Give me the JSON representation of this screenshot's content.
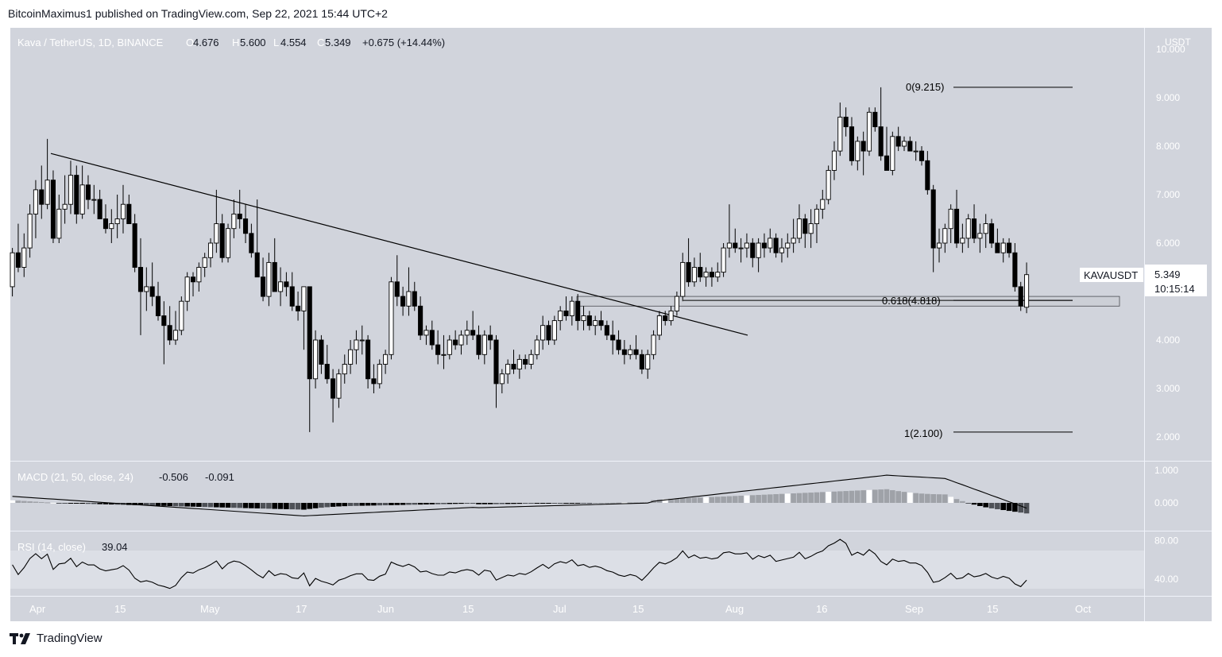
{
  "publisher_line": "BitcoinMaximus1 published on TradingView.com, Sep 22, 2021 15:44 UTC+2",
  "footer_brand": "TradingView",
  "colors": {
    "panel_bg": "#d1d4dc",
    "rsi_band": "#dcdfe6",
    "up_candle_fill": "#ffffff",
    "down_candle_fill": "#000000",
    "line": "#000000",
    "macd_hist_pos_light": "#ffffff",
    "macd_hist_gray": "#8a8d93",
    "macd_hist_dark": "#000000"
  },
  "header": {
    "symbol": "Kava / TetherUS, 1D, BINANCE",
    "o_key": "O",
    "o_val": "4.676",
    "h_key": "H",
    "h_val": "5.600",
    "l_key": "L",
    "l_val": "4.554",
    "c_key": "C",
    "c_val": "5.349",
    "change": "+0.675 (+14.44%)"
  },
  "macd_header": {
    "name": "MACD (21, 50, close, 24)",
    "v1": "-0.506",
    "v2": "-0.091"
  },
  "rsi_header": {
    "name": "RSI (14, close)",
    "v": "39.04"
  },
  "price_axis": {
    "unit": "USDT",
    "ticks": [
      "10.000",
      "9.000",
      "8.000",
      "7.000",
      "6.000",
      "4.000",
      "3.000",
      "2.000"
    ]
  },
  "macd_axis": {
    "ticks": [
      "1.000",
      "0.000"
    ]
  },
  "rsi_axis": {
    "ticks": [
      "80.00",
      "40.00"
    ]
  },
  "time_axis": {
    "ticks": [
      "Apr",
      "15",
      "May",
      "17",
      "Jun",
      "15",
      "Jul",
      "15",
      "Aug",
      "16",
      "Sep",
      "15",
      "Oct"
    ]
  },
  "last_price": {
    "symbol": "KAVAUSDT",
    "price": "5.349",
    "countdown": "10:15:14"
  },
  "fib": {
    "level0": "0(9.215)",
    "level618": "0.618(4.818)",
    "level1": "1(2.100)"
  },
  "chart_data": {
    "type": "candlestick",
    "symbol": "Kava / TetherUS, 1D, BINANCE",
    "unit": "USDT",
    "ylim": [
      1.6,
      10.5
    ],
    "x_start": "2021-03-29",
    "candles": [
      [
        5.1,
        5.9,
        4.9,
        5.8
      ],
      [
        5.8,
        6.4,
        5.4,
        5.5
      ],
      [
        5.5,
        6.2,
        5.3,
        5.9
      ],
      [
        5.9,
        6.8,
        5.7,
        6.6
      ],
      [
        6.6,
        7.3,
        6.1,
        7.1
      ],
      [
        7.1,
        7.6,
        6.5,
        6.8
      ],
      [
        6.8,
        8.15,
        6.7,
        7.3
      ],
      [
        7.3,
        7.5,
        6.0,
        6.1
      ],
      [
        6.1,
        7.0,
        6.0,
        6.7
      ],
      [
        6.7,
        7.4,
        6.4,
        6.8
      ],
      [
        6.8,
        7.7,
        6.6,
        7.4
      ],
      [
        7.4,
        7.6,
        6.4,
        6.6
      ],
      [
        6.6,
        7.6,
        6.5,
        7.2
      ],
      [
        7.2,
        7.4,
        6.7,
        6.9
      ],
      [
        6.9,
        7.2,
        6.6,
        6.9
      ],
      [
        6.9,
        7.1,
        6.5,
        6.5
      ],
      [
        6.5,
        6.8,
        6.2,
        6.3
      ],
      [
        6.3,
        6.7,
        6.0,
        6.4
      ],
      [
        6.4,
        7.0,
        6.1,
        6.5
      ],
      [
        6.5,
        7.2,
        6.2,
        6.8
      ],
      [
        6.8,
        7.0,
        6.4,
        6.4
      ],
      [
        6.4,
        6.6,
        5.4,
        5.5
      ],
      [
        5.5,
        6.1,
        4.1,
        5.0
      ],
      [
        5.0,
        5.5,
        4.6,
        5.1
      ],
      [
        5.1,
        5.6,
        4.7,
        4.9
      ],
      [
        4.9,
        5.2,
        4.4,
        4.5
      ],
      [
        4.5,
        4.8,
        3.5,
        4.3
      ],
      [
        4.3,
        4.7,
        3.9,
        4.0
      ],
      [
        4.0,
        4.6,
        3.9,
        4.2
      ],
      [
        4.2,
        4.9,
        4.1,
        4.8
      ],
      [
        4.8,
        5.4,
        4.6,
        5.3
      ],
      [
        5.3,
        5.4,
        4.9,
        5.2
      ],
      [
        5.2,
        5.6,
        5.0,
        5.5
      ],
      [
        5.5,
        5.8,
        5.3,
        5.7
      ],
      [
        5.7,
        6.1,
        5.5,
        6.0
      ],
      [
        6.0,
        7.1,
        5.8,
        6.4
      ],
      [
        6.4,
        6.6,
        5.6,
        5.7
      ],
      [
        5.7,
        6.4,
        5.6,
        6.3
      ],
      [
        6.3,
        6.9,
        6.1,
        6.6
      ],
      [
        6.6,
        7.1,
        6.3,
        6.5
      ],
      [
        6.5,
        6.8,
        6.0,
        6.2
      ],
      [
        6.2,
        6.4,
        5.7,
        5.8
      ],
      [
        5.8,
        6.9,
        5.3,
        5.3
      ],
      [
        5.3,
        5.7,
        4.8,
        4.9
      ],
      [
        4.9,
        5.8,
        4.7,
        5.6
      ],
      [
        5.6,
        6.1,
        5.0,
        5.0
      ],
      [
        5.0,
        5.5,
        4.7,
        5.2
      ],
      [
        5.2,
        5.4,
        4.9,
        5.1
      ],
      [
        5.1,
        5.4,
        4.6,
        4.7
      ],
      [
        4.7,
        5.0,
        4.4,
        4.6
      ],
      [
        4.6,
        5.1,
        3.8,
        5.1
      ],
      [
        5.1,
        5.1,
        2.1,
        3.2
      ],
      [
        3.2,
        4.2,
        3.0,
        4.0
      ],
      [
        4.0,
        4.1,
        3.3,
        3.5
      ],
      [
        3.5,
        3.9,
        3.1,
        3.2
      ],
      [
        3.2,
        3.4,
        2.3,
        2.8
      ],
      [
        2.8,
        3.4,
        2.6,
        3.3
      ],
      [
        3.3,
        3.7,
        3.1,
        3.5
      ],
      [
        3.5,
        4.0,
        3.3,
        3.8
      ],
      [
        3.8,
        4.2,
        3.5,
        4.0
      ],
      [
        4.0,
        4.3,
        3.7,
        4.0
      ],
      [
        4.0,
        4.1,
        3.0,
        3.2
      ],
      [
        3.2,
        3.5,
        2.9,
        3.1
      ],
      [
        3.1,
        3.6,
        3.0,
        3.5
      ],
      [
        3.5,
        3.8,
        3.3,
        3.7
      ],
      [
        3.7,
        5.3,
        3.6,
        5.2
      ],
      [
        5.2,
        5.75,
        4.7,
        4.9
      ],
      [
        4.9,
        5.1,
        4.5,
        4.7
      ],
      [
        4.7,
        5.5,
        4.5,
        5.0
      ],
      [
        5.0,
        5.2,
        4.6,
        4.7
      ],
      [
        4.7,
        4.9,
        4.0,
        4.1
      ],
      [
        4.1,
        4.3,
        3.9,
        4.2
      ],
      [
        4.2,
        4.4,
        3.8,
        3.9
      ],
      [
        3.9,
        4.2,
        3.5,
        3.7
      ],
      [
        3.7,
        4.1,
        3.4,
        3.7
      ],
      [
        3.7,
        4.1,
        3.6,
        4.0
      ],
      [
        4.0,
        4.2,
        3.8,
        3.9
      ],
      [
        3.9,
        4.2,
        3.7,
        4.1
      ],
      [
        4.1,
        4.4,
        3.9,
        4.2
      ],
      [
        4.2,
        4.6,
        4.0,
        4.1
      ],
      [
        4.1,
        4.3,
        3.6,
        3.7
      ],
      [
        3.7,
        4.2,
        3.5,
        4.1
      ],
      [
        4.1,
        4.3,
        3.8,
        4.0
      ],
      [
        4.0,
        4.1,
        2.6,
        3.1
      ],
      [
        3.1,
        3.4,
        2.9,
        3.3
      ],
      [
        3.3,
        3.6,
        3.1,
        3.5
      ],
      [
        3.5,
        3.8,
        3.3,
        3.4
      ],
      [
        3.4,
        3.7,
        3.2,
        3.6
      ],
      [
        3.6,
        3.7,
        3.4,
        3.5
      ],
      [
        3.5,
        3.8,
        3.4,
        3.7
      ],
      [
        3.7,
        4.1,
        3.6,
        4.0
      ],
      [
        4.0,
        4.5,
        3.8,
        4.3
      ],
      [
        4.3,
        4.4,
        3.9,
        4.0
      ],
      [
        4.0,
        4.5,
        3.9,
        4.4
      ],
      [
        4.4,
        4.7,
        4.2,
        4.6
      ],
      [
        4.6,
        4.9,
        4.4,
        4.5
      ],
      [
        4.5,
        4.9,
        4.3,
        4.8
      ],
      [
        4.8,
        4.95,
        4.2,
        4.4
      ],
      [
        4.4,
        4.7,
        4.2,
        4.5
      ],
      [
        4.5,
        4.6,
        4.2,
        4.3
      ],
      [
        4.3,
        4.5,
        4.1,
        4.4
      ],
      [
        4.4,
        4.6,
        4.2,
        4.3
      ],
      [
        4.3,
        4.4,
        4.0,
        4.1
      ],
      [
        4.1,
        4.4,
        3.7,
        4.0
      ],
      [
        4.0,
        4.2,
        3.7,
        3.8
      ],
      [
        3.8,
        4.0,
        3.5,
        3.7
      ],
      [
        3.7,
        3.9,
        3.6,
        3.8
      ],
      [
        3.8,
        4.1,
        3.6,
        3.7
      ],
      [
        3.7,
        3.8,
        3.3,
        3.4
      ],
      [
        3.4,
        3.8,
        3.2,
        3.7
      ],
      [
        3.7,
        4.2,
        3.6,
        4.1
      ],
      [
        4.1,
        4.6,
        4.0,
        4.5
      ],
      [
        4.5,
        4.6,
        4.3,
        4.4
      ],
      [
        4.4,
        4.7,
        4.3,
        4.6
      ],
      [
        4.6,
        5.0,
        4.5,
        4.9
      ],
      [
        4.9,
        5.8,
        4.8,
        5.6
      ],
      [
        5.6,
        6.1,
        5.1,
        5.2
      ],
      [
        5.2,
        5.7,
        5.1,
        5.5
      ],
      [
        5.5,
        5.8,
        5.2,
        5.3
      ],
      [
        5.3,
        5.5,
        5.1,
        5.4
      ],
      [
        5.4,
        5.5,
        5.1,
        5.3
      ],
      [
        5.3,
        5.6,
        5.2,
        5.4
      ],
      [
        5.4,
        6.0,
        5.3,
        5.9
      ],
      [
        5.9,
        6.8,
        5.7,
        6.0
      ],
      [
        6.0,
        6.3,
        5.8,
        5.9
      ],
      [
        5.9,
        6.1,
        5.6,
        5.9
      ],
      [
        5.9,
        6.2,
        5.7,
        6.0
      ],
      [
        6.0,
        6.1,
        5.5,
        5.7
      ],
      [
        5.7,
        6.1,
        5.4,
        6.0
      ],
      [
        6.0,
        6.2,
        5.7,
        5.9
      ],
      [
        5.9,
        6.3,
        5.8,
        6.1
      ],
      [
        6.1,
        6.2,
        5.7,
        5.8
      ],
      [
        5.8,
        6.1,
        5.6,
        5.9
      ],
      [
        5.9,
        6.2,
        5.7,
        6.0
      ],
      [
        6.0,
        6.5,
        5.8,
        6.1
      ],
      [
        6.1,
        6.8,
        6.0,
        6.5
      ],
      [
        6.5,
        6.6,
        5.9,
        6.2
      ],
      [
        6.2,
        6.7,
        5.9,
        6.4
      ],
      [
        6.4,
        6.8,
        6.0,
        6.7
      ],
      [
        6.7,
        7.1,
        6.5,
        6.9
      ],
      [
        6.9,
        7.6,
        6.8,
        7.5
      ],
      [
        7.5,
        8.1,
        7.3,
        7.9
      ],
      [
        7.9,
        8.9,
        7.8,
        8.6
      ],
      [
        8.6,
        8.8,
        8.2,
        8.4
      ],
      [
        8.4,
        8.6,
        7.6,
        7.7
      ],
      [
        7.7,
        8.2,
        7.5,
        8.1
      ],
      [
        8.1,
        8.3,
        7.4,
        7.9
      ],
      [
        7.9,
        8.8,
        7.8,
        8.7
      ],
      [
        8.7,
        8.8,
        8.3,
        8.4
      ],
      [
        8.4,
        9.215,
        7.7,
        7.8
      ],
      [
        7.8,
        8.4,
        7.5,
        7.5
      ],
      [
        7.5,
        8.3,
        7.4,
        8.2
      ],
      [
        8.2,
        8.4,
        7.9,
        8.0
      ],
      [
        8.0,
        8.2,
        7.9,
        8.1
      ],
      [
        8.1,
        8.2,
        7.9,
        7.9
      ],
      [
        7.9,
        8.1,
        7.7,
        7.9
      ],
      [
        7.9,
        8.0,
        7.6,
        7.7
      ],
      [
        7.7,
        7.9,
        7.0,
        7.1
      ],
      [
        7.1,
        7.2,
        5.4,
        5.9
      ],
      [
        5.9,
        6.3,
        5.6,
        6.0
      ],
      [
        6.0,
        6.4,
        5.8,
        6.3
      ],
      [
        6.3,
        6.8,
        6.0,
        6.7
      ],
      [
        6.7,
        7.1,
        5.9,
        6.0
      ],
      [
        6.0,
        6.4,
        5.8,
        6.1
      ],
      [
        6.1,
        6.6,
        5.9,
        6.5
      ],
      [
        6.5,
        6.8,
        6.0,
        6.1
      ],
      [
        6.1,
        6.4,
        5.8,
        6.2
      ],
      [
        6.2,
        6.6,
        5.9,
        6.4
      ],
      [
        6.4,
        6.5,
        5.9,
        6.0
      ],
      [
        6.0,
        6.3,
        5.8,
        5.8
      ],
      [
        5.8,
        6.1,
        5.6,
        6.0
      ],
      [
        6.0,
        6.1,
        5.7,
        5.8
      ],
      [
        5.8,
        6.0,
        5.0,
        5.1
      ],
      [
        5.1,
        5.2,
        4.6,
        4.7
      ],
      [
        4.676,
        5.6,
        4.554,
        5.349
      ]
    ],
    "trendline": {
      "from": [
        "2021-03-30",
        7.85
      ],
      "to": [
        "2021-08-02",
        4.1
      ]
    },
    "fib_levels": [
      {
        "ratio": 0,
        "value": 9.215
      },
      {
        "ratio": 0.618,
        "value": 4.818
      },
      {
        "ratio": 1,
        "value": 2.1
      }
    ],
    "support_zone": [
      4.7,
      4.9
    ],
    "macd": {
      "params": [
        21,
        50,
        24
      ],
      "macd": -0.506,
      "signal": -0.091,
      "ylim": [
        -0.5,
        1.2
      ]
    },
    "rsi": {
      "length": 14,
      "value": 39.04,
      "ylim": [
        20,
        90
      ],
      "band": [
        30,
        70
      ]
    }
  }
}
